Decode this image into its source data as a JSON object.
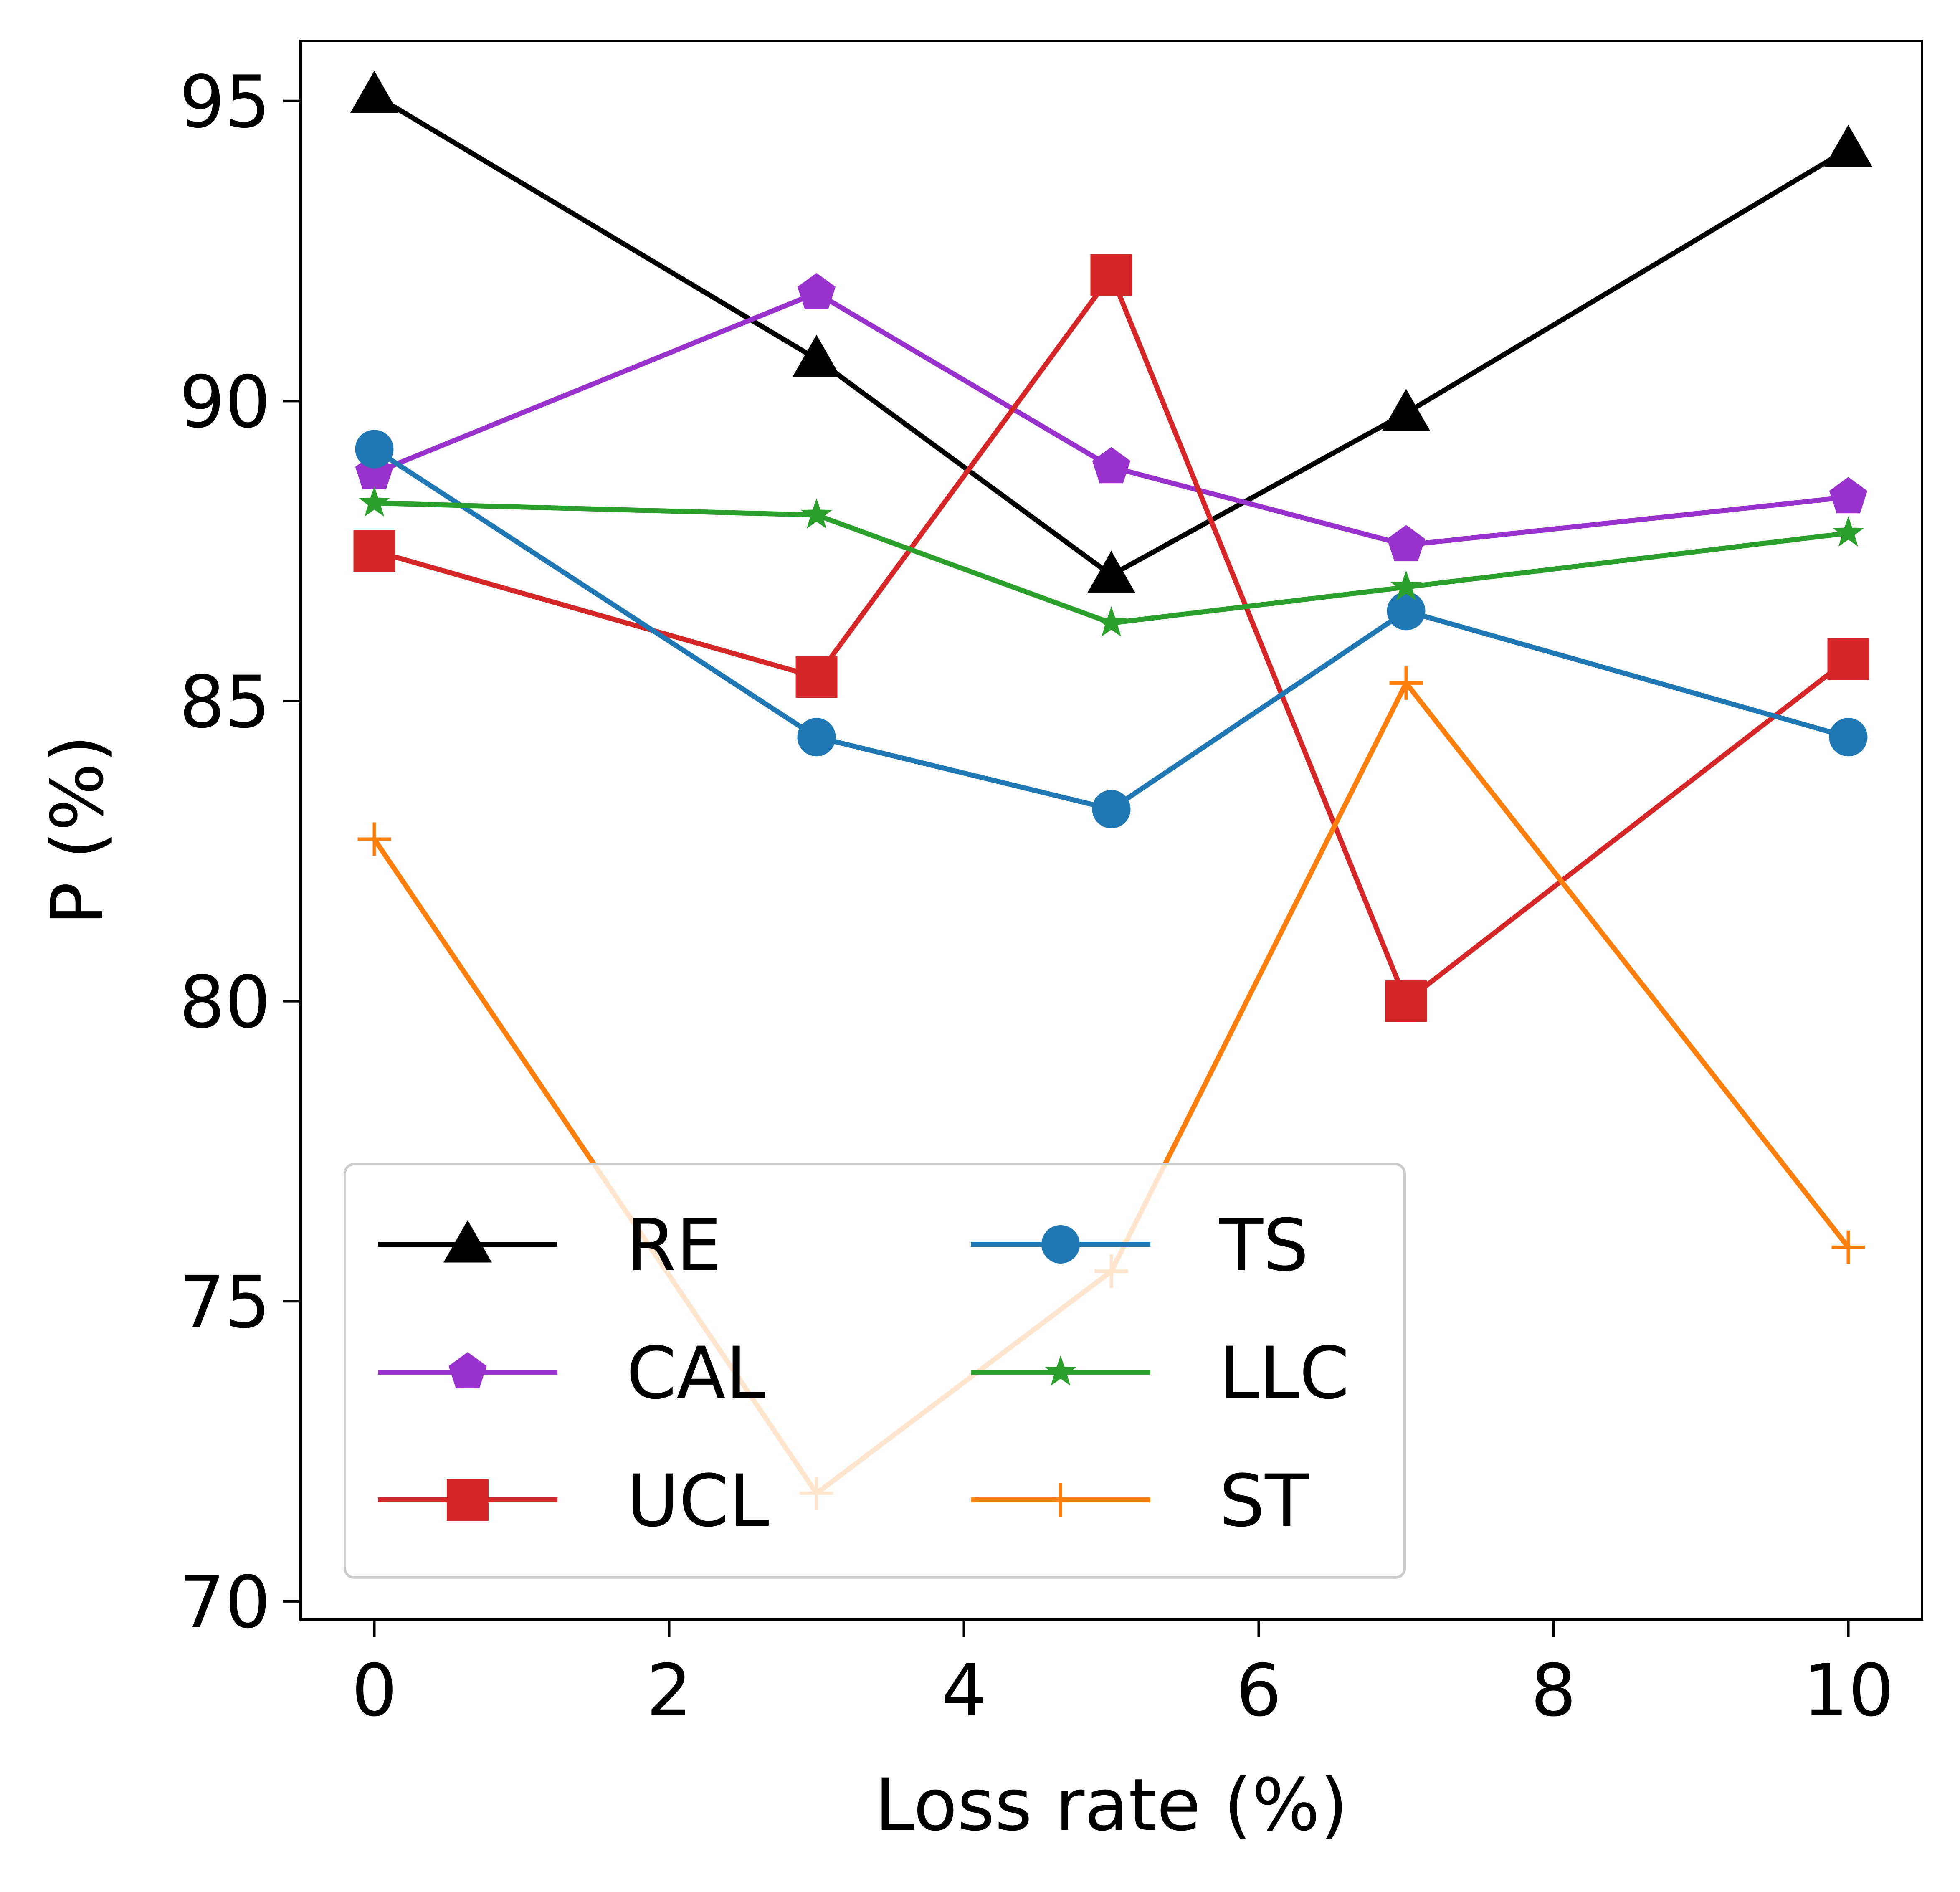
{
  "chart_data": {
    "type": "line",
    "title": "",
    "xlabel": "Loss rate (%)",
    "ylabel": "P (%)",
    "x": [
      0,
      3,
      5,
      7,
      10
    ],
    "xlim": [
      -0.5,
      10.5
    ],
    "ylim": [
      69.7,
      96.0
    ],
    "xticks": [
      0,
      2,
      4,
      6,
      8,
      10
    ],
    "yticks": [
      70,
      75,
      80,
      85,
      90,
      95
    ],
    "grid": false,
    "legend": {
      "position": "lower-left",
      "columns": 2
    },
    "series": [
      {
        "name": "RE",
        "color": "#000000",
        "marker": "triangle",
        "values": [
          95.1,
          90.7,
          87.1,
          89.8,
          94.2
        ]
      },
      {
        "name": "CAL",
        "color": "#9932cc",
        "marker": "pentagon",
        "values": [
          88.8,
          91.8,
          88.9,
          87.6,
          88.4
        ]
      },
      {
        "name": "UCL",
        "color": "#d62728",
        "marker": "square",
        "values": [
          87.5,
          85.4,
          92.1,
          80.0,
          85.7
        ]
      },
      {
        "name": "TS",
        "color": "#1f77b4",
        "marker": "circle",
        "values": [
          89.2,
          84.4,
          83.2,
          86.5,
          84.4
        ]
      },
      {
        "name": "LLC",
        "color": "#2ca02c",
        "marker": "star",
        "values": [
          88.3,
          88.1,
          86.3,
          86.9,
          87.8
        ]
      },
      {
        "name": "ST",
        "color": "#ff7f0e",
        "marker": "plus",
        "values": [
          82.7,
          71.8,
          75.5,
          85.3,
          75.9
        ]
      }
    ]
  }
}
